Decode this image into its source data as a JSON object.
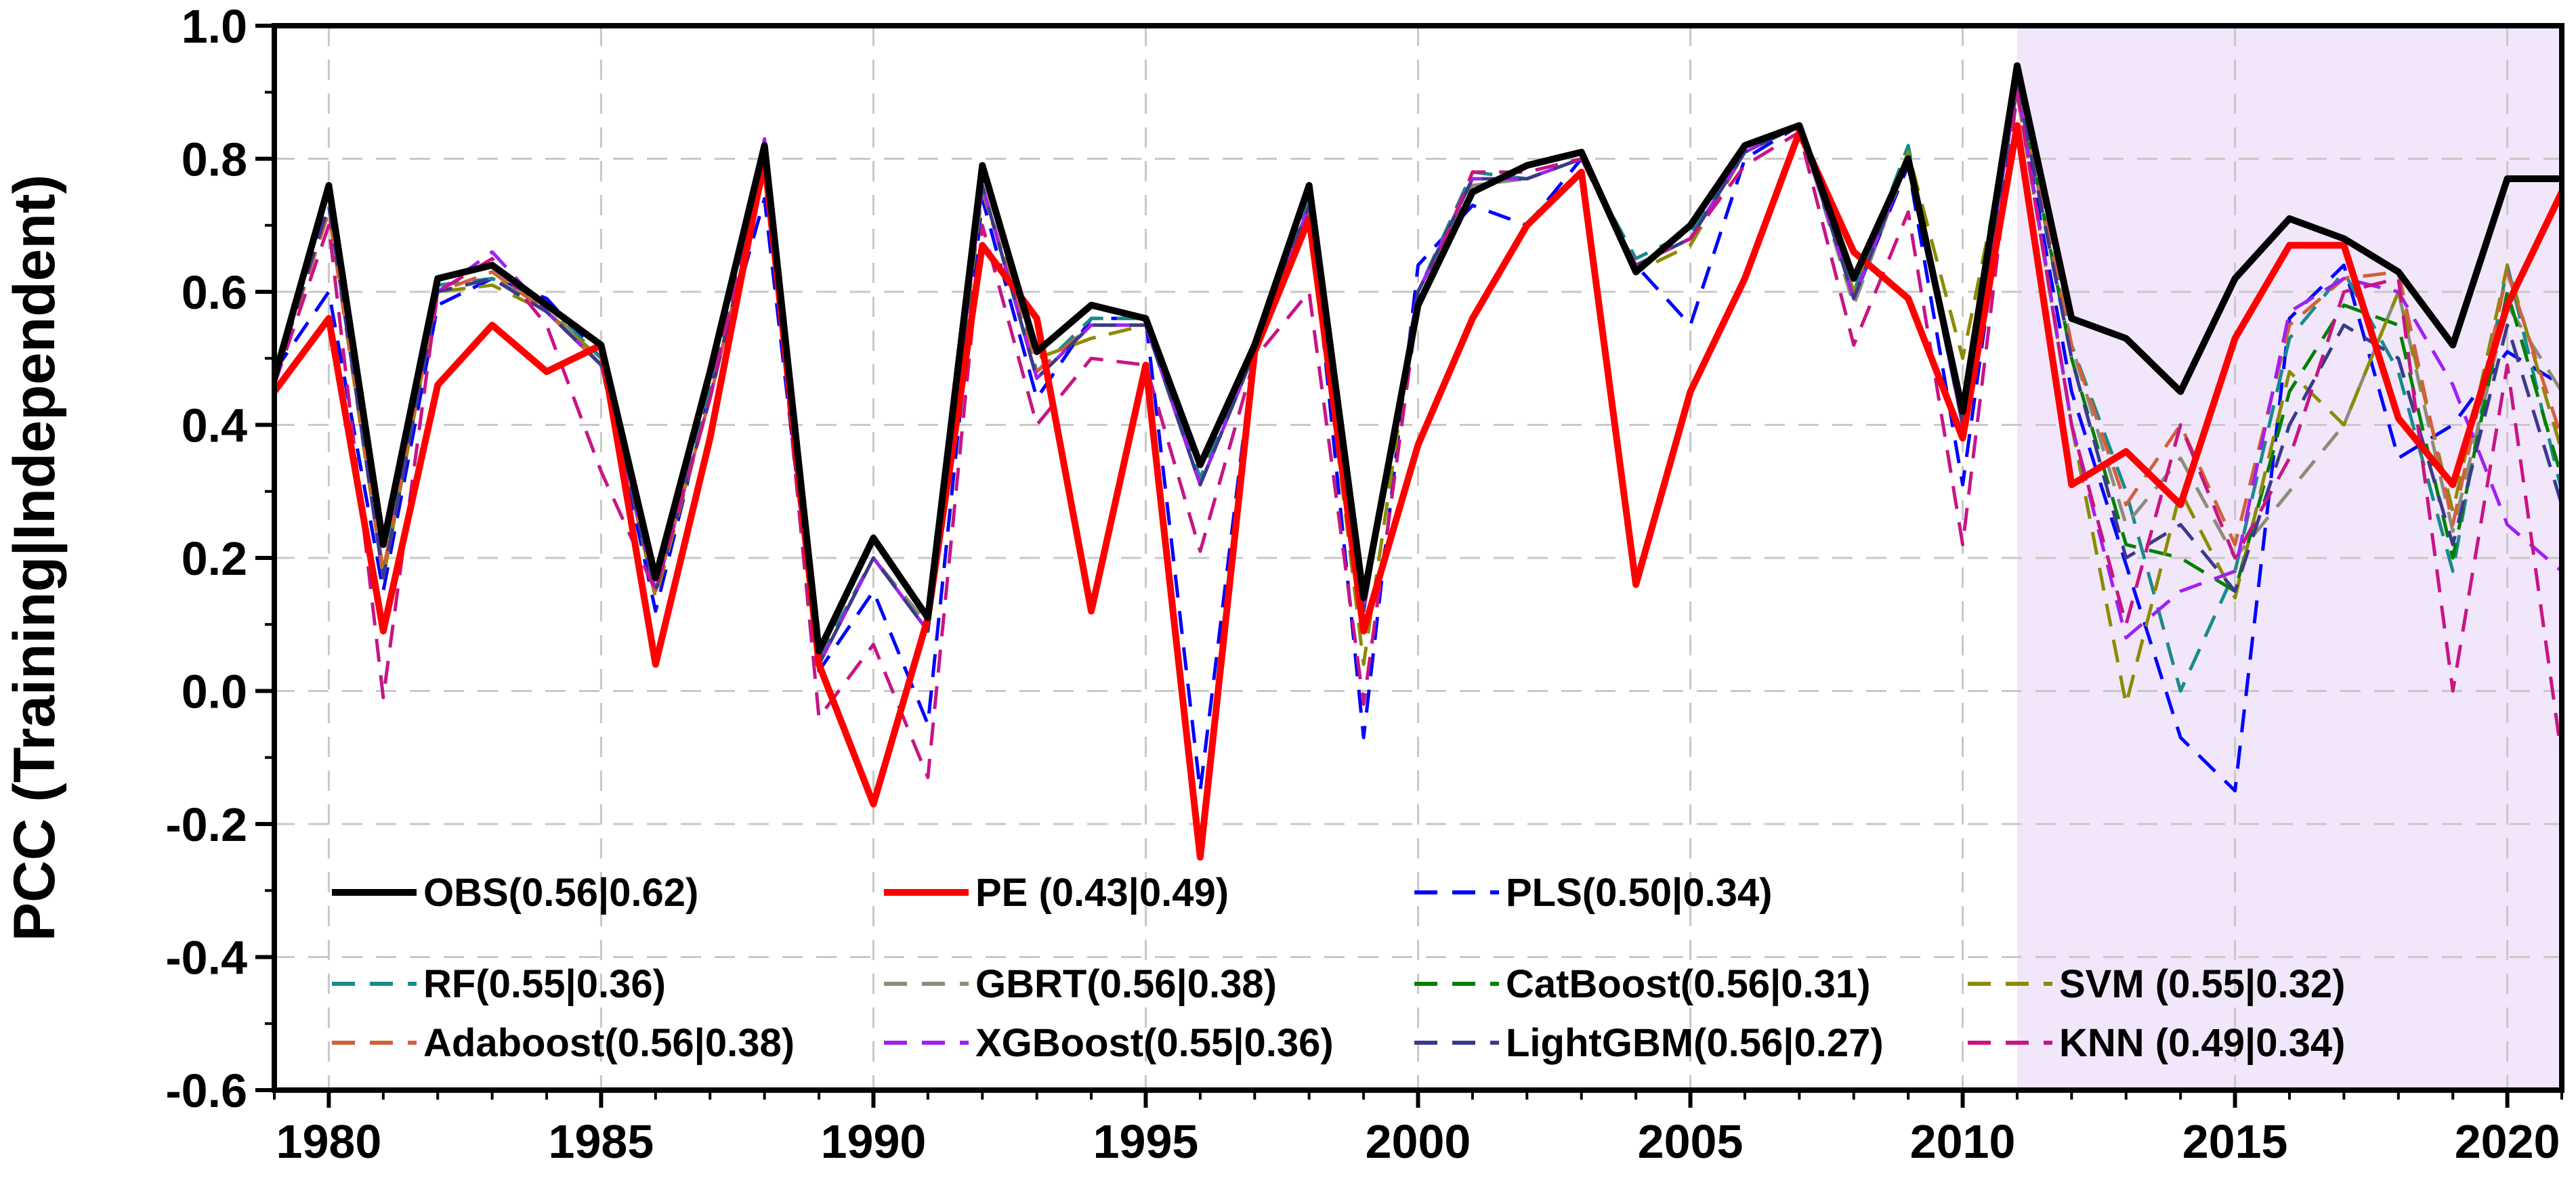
{
  "chart_data": {
    "type": "line",
    "title": "",
    "xlabel": "",
    "ylabel": "PCC (Training|Independent)",
    "xlim": [
      1979,
      2021
    ],
    "ylim": [
      -0.6,
      1.0
    ],
    "xticks": [
      1980,
      1985,
      1990,
      1995,
      2000,
      2005,
      2010,
      2015,
      2020
    ],
    "xtick_labels": [
      "1980",
      "1985",
      "1990",
      "1995",
      "2000",
      "2005",
      "2010",
      "2015",
      "2020"
    ],
    "yticks": [
      -0.6,
      -0.4,
      -0.2,
      0.0,
      0.2,
      0.4,
      0.6,
      0.8,
      1.0
    ],
    "ytick_labels": [
      "-0.6",
      "-0.4",
      "-0.2",
      "0.0",
      "0.2",
      "0.4",
      "0.6",
      "0.8",
      "1.0"
    ],
    "grid": true,
    "legend_position": "bottom-left, inside plot",
    "independent_period_shading": {
      "x_start": 2011,
      "x_end": 2021,
      "color": "#f1e6fa"
    },
    "x": [
      1979,
      1980,
      1981,
      1982,
      1983,
      1984,
      1985,
      1986,
      1987,
      1988,
      1989,
      1990,
      1991,
      1992,
      1993,
      1994,
      1995,
      1996,
      1997,
      1998,
      1999,
      2000,
      2001,
      2002,
      2003,
      2004,
      2005,
      2006,
      2007,
      2008,
      2009,
      2010,
      2011,
      2012,
      2013,
      2014,
      2015,
      2016,
      2017,
      2018,
      2019,
      2020,
      2021
    ],
    "series": [
      {
        "name": "OBS(0.56|0.62)",
        "color": "#000000",
        "style": "solid",
        "width": 10,
        "values": [
          0.47,
          0.76,
          0.22,
          0.62,
          0.64,
          0.58,
          0.52,
          0.17,
          0.48,
          0.82,
          0.06,
          0.23,
          0.11,
          0.79,
          0.51,
          0.58,
          0.56,
          0.34,
          0.52,
          0.76,
          0.14,
          0.58,
          0.75,
          0.79,
          0.81,
          0.63,
          0.7,
          0.82,
          0.85,
          0.62,
          0.8,
          0.42,
          0.94,
          0.56,
          0.53,
          0.45,
          0.62,
          0.71,
          0.68,
          0.63,
          0.52,
          0.77,
          0.77
        ]
      },
      {
        "name": "PE (0.43|0.49)",
        "color": "#ff0000",
        "style": "solid",
        "width": 10,
        "values": [
          0.45,
          0.56,
          0.09,
          0.46,
          0.55,
          0.48,
          0.52,
          0.04,
          0.38,
          0.8,
          0.04,
          -0.17,
          0.11,
          0.67,
          0.56,
          0.12,
          0.49,
          -0.25,
          0.51,
          0.71,
          0.09,
          0.37,
          0.56,
          0.7,
          0.78,
          0.16,
          0.45,
          0.62,
          0.84,
          0.66,
          0.59,
          0.38,
          0.85,
          0.31,
          0.36,
          0.28,
          0.53,
          0.67,
          0.67,
          0.41,
          0.31,
          0.58,
          0.75
        ]
      },
      {
        "name": "PLS(0.50|0.34)",
        "color": "#0000ff",
        "style": "dashed",
        "width": 5,
        "values": [
          0.48,
          0.6,
          0.15,
          0.58,
          0.62,
          0.59,
          0.5,
          0.12,
          0.45,
          0.74,
          0.03,
          0.15,
          -0.05,
          0.74,
          0.44,
          0.56,
          0.56,
          -0.15,
          0.52,
          0.74,
          -0.07,
          0.64,
          0.73,
          0.7,
          0.8,
          0.64,
          0.55,
          0.8,
          0.85,
          0.59,
          0.79,
          0.31,
          0.9,
          0.45,
          0.19,
          -0.07,
          -0.15,
          0.56,
          0.64,
          0.35,
          0.4,
          0.51,
          0.46
        ]
      },
      {
        "name": "RF(0.55|0.36)",
        "color": "#1a8a8a",
        "style": "dashed",
        "width": 5,
        "values": [
          0.47,
          0.73,
          0.18,
          0.61,
          0.62,
          0.58,
          0.5,
          0.15,
          0.45,
          0.78,
          0.05,
          0.2,
          0.09,
          0.76,
          0.48,
          0.56,
          0.56,
          0.32,
          0.52,
          0.74,
          0.13,
          0.6,
          0.78,
          0.77,
          0.8,
          0.65,
          0.69,
          0.81,
          0.85,
          0.6,
          0.82,
          0.4,
          0.93,
          0.52,
          0.3,
          0.0,
          0.18,
          0.53,
          0.63,
          0.48,
          0.18,
          0.64,
          0.3
        ]
      },
      {
        "name": "GBRT(0.56|0.38)",
        "color": "#8c8c7a",
        "style": "dashed",
        "width": 5,
        "values": [
          0.47,
          0.73,
          0.17,
          0.6,
          0.62,
          0.58,
          0.49,
          0.15,
          0.44,
          0.78,
          0.04,
          0.2,
          0.1,
          0.76,
          0.47,
          0.55,
          0.55,
          0.31,
          0.51,
          0.73,
          0.12,
          0.6,
          0.76,
          0.77,
          0.8,
          0.64,
          0.68,
          0.81,
          0.85,
          0.58,
          0.8,
          0.4,
          0.92,
          0.52,
          0.25,
          0.35,
          0.2,
          0.3,
          0.4,
          0.6,
          0.24,
          0.58,
          0.45
        ]
      },
      {
        "name": "CatBoost(0.56|0.31)",
        "color": "#008000",
        "style": "dashed",
        "width": 5,
        "values": [
          0.47,
          0.73,
          0.17,
          0.6,
          0.62,
          0.57,
          0.49,
          0.15,
          0.44,
          0.78,
          0.04,
          0.2,
          0.09,
          0.76,
          0.47,
          0.55,
          0.55,
          0.31,
          0.51,
          0.73,
          0.12,
          0.6,
          0.77,
          0.77,
          0.8,
          0.64,
          0.68,
          0.81,
          0.85,
          0.59,
          0.8,
          0.4,
          0.92,
          0.5,
          0.22,
          0.2,
          0.15,
          0.45,
          0.58,
          0.55,
          0.2,
          0.6,
          0.32
        ]
      },
      {
        "name": "SVM (0.55|0.32)",
        "color": "#8b8b00",
        "style": "dashed",
        "width": 5,
        "values": [
          0.47,
          0.72,
          0.17,
          0.6,
          0.61,
          0.57,
          0.5,
          0.14,
          0.44,
          0.78,
          0.04,
          0.2,
          0.09,
          0.75,
          0.5,
          0.53,
          0.55,
          0.31,
          0.51,
          0.72,
          0.04,
          0.6,
          0.77,
          0.77,
          0.8,
          0.63,
          0.67,
          0.81,
          0.85,
          0.6,
          0.81,
          0.5,
          0.9,
          0.4,
          -0.02,
          0.3,
          0.14,
          0.48,
          0.4,
          0.6,
          0.27,
          0.64,
          0.36
        ]
      },
      {
        "name": "Adaboost(0.56|0.38)",
        "color": "#d2603a",
        "style": "dashed",
        "width": 5,
        "values": [
          0.47,
          0.72,
          0.18,
          0.6,
          0.63,
          0.57,
          0.49,
          0.15,
          0.44,
          0.78,
          0.04,
          0.2,
          0.09,
          0.76,
          0.48,
          0.55,
          0.55,
          0.31,
          0.51,
          0.73,
          0.12,
          0.6,
          0.77,
          0.77,
          0.8,
          0.64,
          0.68,
          0.81,
          0.85,
          0.59,
          0.8,
          0.4,
          0.91,
          0.52,
          0.28,
          0.4,
          0.22,
          0.55,
          0.62,
          0.63,
          0.25,
          0.63,
          0.38
        ]
      },
      {
        "name": "XGBoost(0.55|0.36)",
        "color": "#a020f0",
        "style": "dashed",
        "width": 5,
        "values": [
          0.47,
          0.73,
          0.17,
          0.6,
          0.66,
          0.57,
          0.49,
          0.15,
          0.44,
          0.83,
          0.04,
          0.2,
          0.09,
          0.76,
          0.47,
          0.55,
          0.55,
          0.31,
          0.51,
          0.73,
          0.12,
          0.6,
          0.77,
          0.77,
          0.8,
          0.64,
          0.68,
          0.81,
          0.85,
          0.59,
          0.8,
          0.4,
          0.91,
          0.4,
          0.08,
          0.15,
          0.18,
          0.57,
          0.62,
          0.6,
          0.46,
          0.25,
          0.18
        ]
      },
      {
        "name": "LightGBM(0.56|0.27)",
        "color": "#3a3a8c",
        "style": "dashed",
        "width": 5,
        "values": [
          0.47,
          0.73,
          0.17,
          0.6,
          0.62,
          0.57,
          0.49,
          0.15,
          0.44,
          0.78,
          0.04,
          0.2,
          0.09,
          0.76,
          0.47,
          0.55,
          0.55,
          0.31,
          0.51,
          0.73,
          0.12,
          0.6,
          0.77,
          0.77,
          0.8,
          0.64,
          0.68,
          0.81,
          0.85,
          0.59,
          0.8,
          0.4,
          0.91,
          0.5,
          0.2,
          0.25,
          0.15,
          0.4,
          0.55,
          0.5,
          0.22,
          0.55,
          0.28
        ]
      },
      {
        "name": "KNN (0.49|0.34)",
        "color": "#c71585",
        "style": "dashed",
        "width": 5,
        "values": [
          0.46,
          0.7,
          -0.01,
          0.6,
          0.65,
          0.55,
          0.33,
          0.15,
          0.44,
          0.81,
          -0.04,
          0.07,
          -0.13,
          0.7,
          0.4,
          0.5,
          0.49,
          0.21,
          0.5,
          0.6,
          -0.02,
          0.58,
          0.78,
          0.78,
          0.8,
          0.64,
          0.68,
          0.79,
          0.84,
          0.52,
          0.72,
          0.22,
          0.9,
          0.4,
          0.1,
          0.4,
          0.2,
          0.35,
          0.6,
          0.62,
          0.0,
          0.49,
          -0.1
        ]
      }
    ]
  }
}
